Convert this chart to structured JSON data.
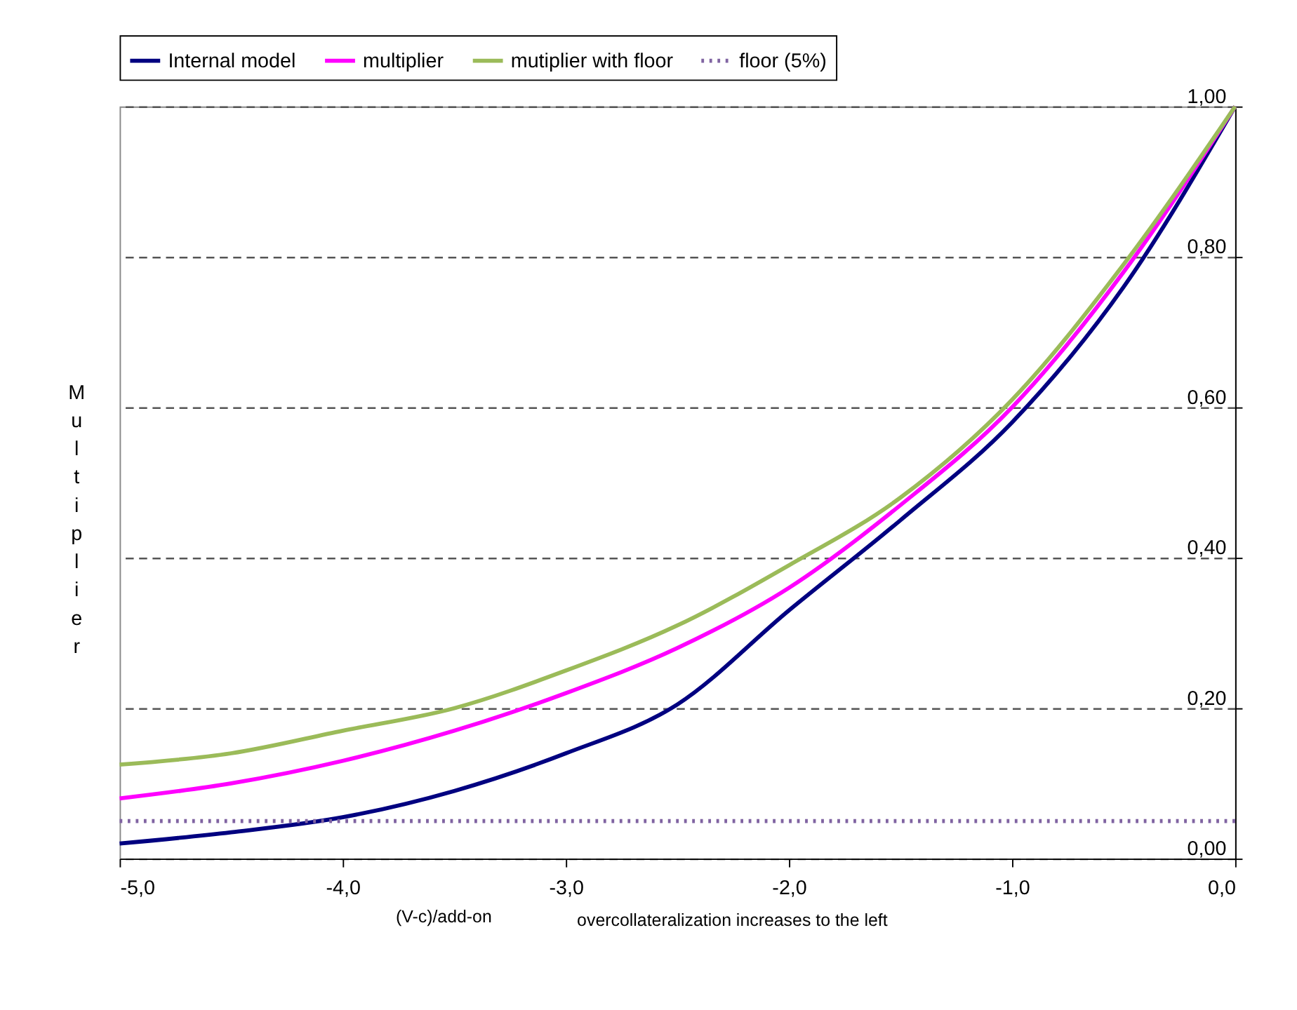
{
  "chart_data": {
    "type": "line",
    "xlabel": "(V-c)/add-on",
    "ylabel": "Multiplier",
    "annotations": [
      "overcollateralization increases to the left"
    ],
    "x": [
      -5.0,
      -4.5,
      -4.0,
      -3.5,
      -3.0,
      -2.5,
      -2.0,
      -1.5,
      -1.0,
      -0.5,
      0.0
    ],
    "series": [
      {
        "name": "Internal model",
        "color": "#000080",
        "line_style": "solid",
        "values": [
          0.02,
          0.035,
          0.055,
          0.09,
          0.14,
          0.205,
          0.33,
          0.45,
          0.58,
          0.76,
          1.0
        ]
      },
      {
        "name": "multiplier",
        "color": "#ff00ff",
        "line_style": "solid",
        "values": [
          0.08,
          0.1,
          0.13,
          0.17,
          0.22,
          0.28,
          0.36,
          0.47,
          0.6,
          0.78,
          1.0
        ]
      },
      {
        "name": "mutiplier with floor",
        "color": "#9bbb59",
        "line_style": "solid",
        "values": [
          0.125,
          0.14,
          0.17,
          0.2,
          0.25,
          0.31,
          0.39,
          0.48,
          0.61,
          0.79,
          1.0
        ]
      },
      {
        "name": "floor (5%)",
        "color": "#8064a2",
        "line_style": "dotted",
        "values": [
          0.05,
          0.05,
          0.05,
          0.05,
          0.05,
          0.05,
          0.05,
          0.05,
          0.05,
          0.05,
          0.05
        ]
      }
    ],
    "xlim": [
      -5.0,
      0.0
    ],
    "xticks": [
      {
        "value": -5,
        "label": "-5,0"
      },
      {
        "value": -4,
        "label": "-4,0"
      },
      {
        "value": -3,
        "label": "-3,0"
      },
      {
        "value": -2,
        "label": "-2,0"
      },
      {
        "value": -1,
        "label": "-1,0"
      },
      {
        "value": 0,
        "label": "0,0"
      }
    ],
    "ylim": [
      0.0,
      1.0
    ],
    "yticks": [
      {
        "value": 0,
        "label": "0,00"
      },
      {
        "value": 0.2,
        "label": "0,20"
      },
      {
        "value": 0.4,
        "label": "0,40"
      },
      {
        "value": 0.6,
        "label": "0,60"
      },
      {
        "value": 0.8,
        "label": "0,80"
      },
      {
        "value": 1.0,
        "label": "1,00"
      }
    ],
    "grid": "y",
    "legend": "top"
  }
}
